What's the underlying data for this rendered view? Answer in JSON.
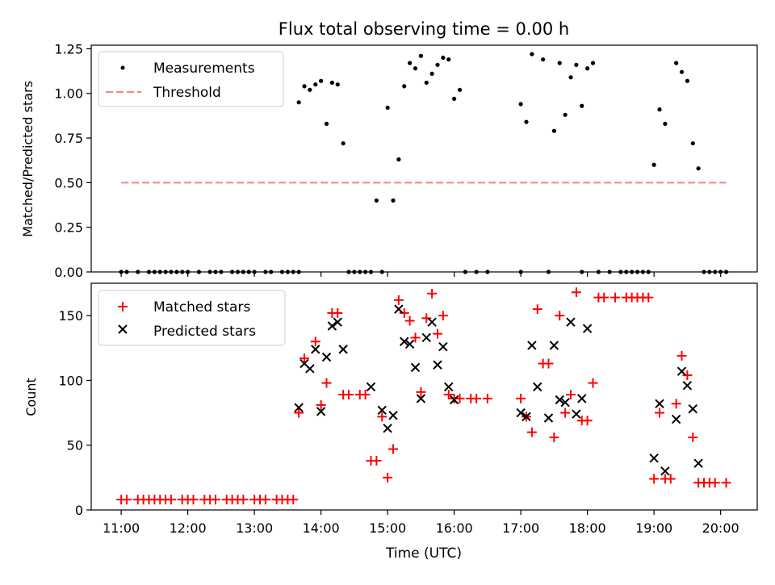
{
  "figure": {
    "title": "Flux total observing time = 0.00 h"
  },
  "colors": {
    "measurement": "#000000",
    "threshold": "#ff8080",
    "matched": "#ff0000",
    "predicted": "#000000"
  },
  "chart_data": [
    {
      "type": "scatter",
      "ylabel": "Matched/Predicted stars",
      "xlabel": "",
      "x_unit": "time (UTC)",
      "xlim": [
        "10:33",
        "20:33"
      ],
      "ylim": [
        0,
        1.27
      ],
      "yticks": [
        "0.00",
        "0.25",
        "0.50",
        "0.75",
        "1.00",
        "1.25"
      ],
      "ytick_values": [
        0,
        0.25,
        0.5,
        0.75,
        1.0,
        1.25
      ],
      "grid": false,
      "legend": "top-left",
      "legend_entries": [
        "Measurements",
        "Threshold"
      ],
      "threshold": {
        "name": "Threshold",
        "value": 0.5,
        "x_start": "11:00",
        "x_end": "20:05"
      },
      "series": [
        {
          "name": "Measurements",
          "points": [
            [
              "11:00",
              0
            ],
            [
              "11:05",
              0
            ],
            [
              "11:15",
              0
            ],
            [
              "11:25",
              0
            ],
            [
              "11:30",
              0
            ],
            [
              "11:35",
              0
            ],
            [
              "11:40",
              0
            ],
            [
              "11:45",
              0
            ],
            [
              "11:50",
              0
            ],
            [
              "11:55",
              0
            ],
            [
              "12:00",
              0
            ],
            [
              "12:10",
              0
            ],
            [
              "12:20",
              0
            ],
            [
              "12:25",
              0
            ],
            [
              "12:30",
              0
            ],
            [
              "12:40",
              0
            ],
            [
              "12:45",
              0
            ],
            [
              "12:50",
              0
            ],
            [
              "12:55",
              0
            ],
            [
              "13:00",
              0
            ],
            [
              "13:10",
              0
            ],
            [
              "13:15",
              0
            ],
            [
              "13:25",
              0
            ],
            [
              "13:30",
              0
            ],
            [
              "13:35",
              0
            ],
            [
              "13:40",
              0
            ],
            [
              "13:40",
              0.95
            ],
            [
              "13:45",
              1.04
            ],
            [
              "13:50",
              1.02
            ],
            [
              "13:55",
              1.05
            ],
            [
              "14:00",
              1.07
            ],
            [
              "14:05",
              0.83
            ],
            [
              "14:10",
              1.06
            ],
            [
              "14:15",
              1.05
            ],
            [
              "14:20",
              0.72
            ],
            [
              "14:25",
              0
            ],
            [
              "14:30",
              0
            ],
            [
              "14:35",
              0
            ],
            [
              "14:40",
              0
            ],
            [
              "14:45",
              0
            ],
            [
              "14:50",
              0.4
            ],
            [
              "14:55",
              0
            ],
            [
              "15:00",
              0.92
            ],
            [
              "15:05",
              0.4
            ],
            [
              "15:10",
              0.63
            ],
            [
              "15:15",
              1.04
            ],
            [
              "15:20",
              1.17
            ],
            [
              "15:25",
              1.14
            ],
            [
              "15:30",
              1.21
            ],
            [
              "15:35",
              1.06
            ],
            [
              "15:40",
              1.11
            ],
            [
              "15:45",
              1.16
            ],
            [
              "15:50",
              1.2
            ],
            [
              "15:55",
              1.19
            ],
            [
              "16:00",
              0.97
            ],
            [
              "16:05",
              1.02
            ],
            [
              "16:10",
              0
            ],
            [
              "16:20",
              0
            ],
            [
              "16:30",
              0
            ],
            [
              "17:00",
              0
            ],
            [
              "17:00",
              0.94
            ],
            [
              "17:05",
              0.84
            ],
            [
              "17:10",
              1.22
            ],
            [
              "17:20",
              1.19
            ],
            [
              "17:25",
              0
            ],
            [
              "17:30",
              0.79
            ],
            [
              "17:35",
              1.17
            ],
            [
              "17:40",
              0.88
            ],
            [
              "17:45",
              1.09
            ],
            [
              "17:50",
              1.16
            ],
            [
              "17:55",
              0
            ],
            [
              "17:55",
              0.93
            ],
            [
              "18:00",
              1.14
            ],
            [
              "18:05",
              1.17
            ],
            [
              "18:10",
              0
            ],
            [
              "18:20",
              0
            ],
            [
              "18:30",
              0
            ],
            [
              "18:35",
              0
            ],
            [
              "18:40",
              0
            ],
            [
              "18:45",
              0
            ],
            [
              "18:50",
              0
            ],
            [
              "18:55",
              0
            ],
            [
              "19:00",
              0.6
            ],
            [
              "19:05",
              0.91
            ],
            [
              "19:10",
              0.83
            ],
            [
              "19:20",
              1.17
            ],
            [
              "19:25",
              1.12
            ],
            [
              "19:30",
              1.07
            ],
            [
              "19:35",
              0.72
            ],
            [
              "19:40",
              0.58
            ],
            [
              "19:45",
              0
            ],
            [
              "19:50",
              0
            ],
            [
              "19:55",
              0
            ],
            [
              "20:00",
              0
            ],
            [
              "20:05",
              0
            ]
          ]
        }
      ]
    },
    {
      "type": "scatter",
      "ylabel": "Count",
      "xlabel": "Time (UTC)",
      "xlim": [
        "10:33",
        "20:33"
      ],
      "ylim": [
        0,
        175
      ],
      "yticks": [
        "0",
        "50",
        "100",
        "150"
      ],
      "ytick_values": [
        0,
        50,
        100,
        150
      ],
      "xticks": [
        "11:00",
        "12:00",
        "13:00",
        "14:00",
        "15:00",
        "16:00",
        "17:00",
        "18:00",
        "19:00",
        "20:00"
      ],
      "grid": false,
      "legend": "top-left",
      "legend_entries": [
        "Matched stars",
        "Predicted stars"
      ],
      "series": [
        {
          "name": "Matched stars",
          "points": [
            [
              "11:00",
              8
            ],
            [
              "11:05",
              8
            ],
            [
              "11:15",
              8
            ],
            [
              "11:20",
              8
            ],
            [
              "11:25",
              8
            ],
            [
              "11:30",
              8
            ],
            [
              "11:35",
              8
            ],
            [
              "11:40",
              8
            ],
            [
              "11:45",
              8
            ],
            [
              "11:55",
              8
            ],
            [
              "12:00",
              8
            ],
            [
              "12:05",
              8
            ],
            [
              "12:15",
              8
            ],
            [
              "12:20",
              8
            ],
            [
              "12:25",
              8
            ],
            [
              "12:35",
              8
            ],
            [
              "12:40",
              8
            ],
            [
              "12:45",
              8
            ],
            [
              "12:50",
              8
            ],
            [
              "13:00",
              8
            ],
            [
              "13:05",
              8
            ],
            [
              "13:10",
              8
            ],
            [
              "13:20",
              8
            ],
            [
              "13:25",
              8
            ],
            [
              "13:30",
              8
            ],
            [
              "13:35",
              8
            ],
            [
              "13:40",
              75
            ],
            [
              "13:45",
              117
            ],
            [
              "13:55",
              130
            ],
            [
              "14:00",
              81
            ],
            [
              "14:05",
              98
            ],
            [
              "14:10",
              152
            ],
            [
              "14:15",
              152
            ],
            [
              "14:20",
              89
            ],
            [
              "14:25",
              89
            ],
            [
              "14:35",
              89
            ],
            [
              "14:40",
              89
            ],
            [
              "14:45",
              38
            ],
            [
              "14:50",
              38
            ],
            [
              "14:55",
              72
            ],
            [
              "15:00",
              25
            ],
            [
              "15:05",
              47
            ],
            [
              "15:10",
              162
            ],
            [
              "15:15",
              152
            ],
            [
              "15:20",
              146
            ],
            [
              "15:25",
              133
            ],
            [
              "15:30",
              91
            ],
            [
              "15:35",
              148
            ],
            [
              "15:40",
              167
            ],
            [
              "15:45",
              136
            ],
            [
              "15:50",
              150
            ],
            [
              "15:55",
              89
            ],
            [
              "16:00",
              86
            ],
            [
              "16:05",
              86
            ],
            [
              "16:15",
              86
            ],
            [
              "16:20",
              86
            ],
            [
              "16:30",
              86
            ],
            [
              "17:00",
              86
            ],
            [
              "17:05",
              72
            ],
            [
              "17:10",
              60
            ],
            [
              "17:15",
              155
            ],
            [
              "17:20",
              113
            ],
            [
              "17:25",
              113
            ],
            [
              "17:30",
              56
            ],
            [
              "17:35",
              150
            ],
            [
              "17:40",
              75
            ],
            [
              "17:45",
              89
            ],
            [
              "17:50",
              168
            ],
            [
              "17:55",
              69
            ],
            [
              "18:00",
              69
            ],
            [
              "18:05",
              98
            ],
            [
              "18:10",
              164
            ],
            [
              "18:15",
              164
            ],
            [
              "18:25",
              164
            ],
            [
              "18:35",
              164
            ],
            [
              "18:40",
              164
            ],
            [
              "18:45",
              164
            ],
            [
              "18:50",
              164
            ],
            [
              "18:55",
              164
            ],
            [
              "19:00",
              24
            ],
            [
              "19:05",
              75
            ],
            [
              "19:10",
              24
            ],
            [
              "19:15",
              24
            ],
            [
              "19:20",
              82
            ],
            [
              "19:25",
              119
            ],
            [
              "19:30",
              104
            ],
            [
              "19:35",
              56
            ],
            [
              "19:40",
              21
            ],
            [
              "19:45",
              21
            ],
            [
              "19:50",
              21
            ],
            [
              "19:55",
              21
            ],
            [
              "20:05",
              21
            ]
          ]
        },
        {
          "name": "Predicted stars",
          "points": [
            [
              "13:40",
              79
            ],
            [
              "13:45",
              113
            ],
            [
              "13:50",
              109
            ],
            [
              "13:55",
              124
            ],
            [
              "14:00",
              76
            ],
            [
              "14:05",
              118
            ],
            [
              "14:10",
              142
            ],
            [
              "14:15",
              145
            ],
            [
              "14:20",
              124
            ],
            [
              "14:45",
              95
            ],
            [
              "14:55",
              77
            ],
            [
              "15:00",
              63
            ],
            [
              "15:05",
              73
            ],
            [
              "15:10",
              155
            ],
            [
              "15:15",
              130
            ],
            [
              "15:20",
              128
            ],
            [
              "15:25",
              110
            ],
            [
              "15:30",
              86
            ],
            [
              "15:35",
              133
            ],
            [
              "15:40",
              145
            ],
            [
              "15:45",
              112
            ],
            [
              "15:50",
              126
            ],
            [
              "15:55",
              95
            ],
            [
              "16:00",
              85
            ],
            [
              "17:00",
              75
            ],
            [
              "17:05",
              72
            ],
            [
              "17:10",
              127
            ],
            [
              "17:15",
              95
            ],
            [
              "17:25",
              71
            ],
            [
              "17:30",
              127
            ],
            [
              "17:35",
              85
            ],
            [
              "17:40",
              83
            ],
            [
              "17:45",
              145
            ],
            [
              "17:50",
              74
            ],
            [
              "17:55",
              86
            ],
            [
              "18:00",
              140
            ],
            [
              "19:00",
              40
            ],
            [
              "19:05",
              82
            ],
            [
              "19:10",
              30
            ],
            [
              "19:20",
              70
            ],
            [
              "19:25",
              107
            ],
            [
              "19:30",
              96
            ],
            [
              "19:35",
              78
            ],
            [
              "19:40",
              36
            ]
          ]
        }
      ]
    }
  ]
}
